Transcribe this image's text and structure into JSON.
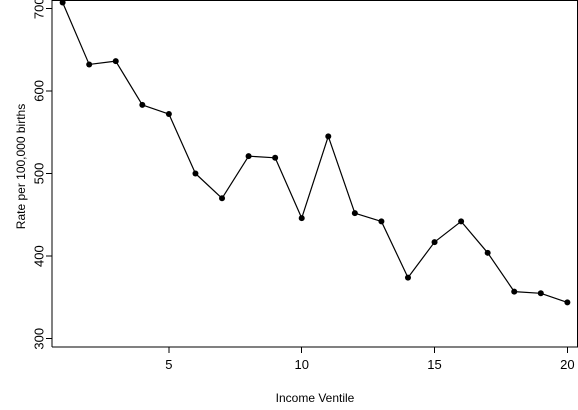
{
  "chart_data": {
    "type": "line",
    "xlabel": "Income Ventile",
    "ylabel": "Rate per 100,000 births",
    "x": [
      1,
      2,
      3,
      4,
      5,
      6,
      7,
      8,
      9,
      10,
      11,
      12,
      13,
      14,
      15,
      16,
      17,
      18,
      19,
      20
    ],
    "series": [
      {
        "values": [
          707,
          632,
          636,
          583,
          572,
          500,
          470,
          521,
          519,
          446,
          545,
          452,
          442,
          374,
          417,
          442,
          404,
          357,
          355,
          344
        ]
      }
    ],
    "xlim": [
      0.6,
      20.4
    ],
    "ylim": [
      290,
      710
    ],
    "xticks": [
      5,
      10,
      15,
      20
    ],
    "yticks": [
      300,
      400,
      500,
      600,
      700
    ],
    "grid": false,
    "legend": "none",
    "line_color": "#000000",
    "marker_color": "#000000",
    "background_color": "#ffffff"
  }
}
